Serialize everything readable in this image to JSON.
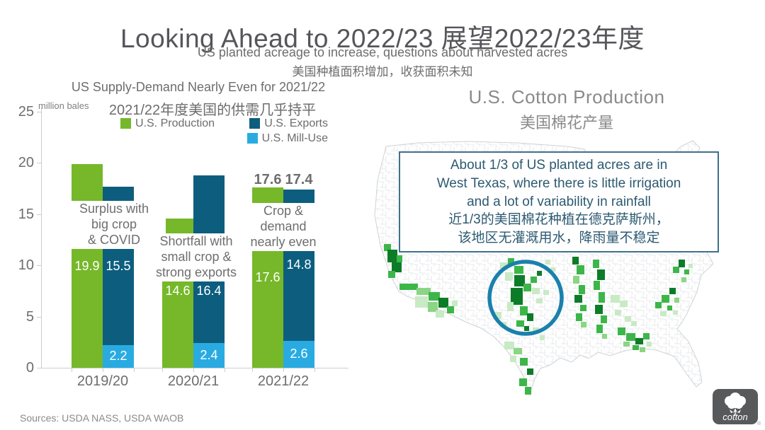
{
  "slide": {
    "title": "Looking Ahead to 2022/23 展望2022/23年度",
    "subtitle_en": "US planted acreage to increase, questions about harvested acres",
    "subtitle_zh": "美国种植面积增加，收获面积未知",
    "sources": "Sources: USDA NASS, USDA WAOB",
    "logo_text": "cotton",
    "logo_registered_mark": "®"
  },
  "chart": {
    "title_en": "US Supply-Demand Nearly Even for 2021/22",
    "title_zh": "2021/22年度美国的供需几乎持平",
    "axis_label": "million bales"
  },
  "chart_data": {
    "type": "bar",
    "title": "US Supply-Demand Nearly Even for 2021/22",
    "ylabel": "million bales",
    "ylim": [
      0,
      25
    ],
    "yticks": [
      0,
      5,
      10,
      15,
      20,
      25
    ],
    "categories": [
      "2019/20",
      "2020/21",
      "2021/22"
    ],
    "structure": "per category: one production bar beside one stacked demand bar (mill-use bottom, exports top)",
    "series": [
      {
        "name": "U.S. Production",
        "color": "#76b82a",
        "values": [
          19.9,
          14.6,
          17.6
        ]
      },
      {
        "name": "U.S. Exports",
        "color": "#0d5e7e",
        "values": [
          15.5,
          16.4,
          14.8
        ]
      },
      {
        "name": "U.S. Mill-Use",
        "color": "#29abe2",
        "values": [
          2.2,
          2.4,
          2.6
        ]
      }
    ],
    "annotations": [
      [
        "Surplus with",
        "big crop",
        "& COVID"
      ],
      [
        "Shortfall with",
        "small crop &",
        "strong exports"
      ],
      [
        "Crop &",
        "demand",
        "nearly even"
      ]
    ],
    "totals": [
      null,
      null,
      {
        "production": "17.6",
        "demand": "17.4"
      }
    ],
    "legend_position": "top"
  },
  "map": {
    "title_en": "U.S. Cotton Production",
    "title_zh": "美国棉花产量",
    "callout_en_lines": [
      "About 1/3 of US planted acres are in",
      "West Texas, where there is little irrigation",
      "and a lot of variability in rainfall"
    ],
    "callout_zh_lines": [
      "近1/3的美国棉花种植在德克萨斯州，",
      "该地区无灌溉用水，降雨量不稳定"
    ],
    "highlight": "West Texas circled",
    "regions": [
      "California",
      "Arizona",
      "West Texas",
      "South Texas",
      "Oklahoma",
      "Mississippi Delta",
      "Southeast",
      "Carolinas"
    ],
    "shade_colors": {
      "light": "#c8eac4",
      "medium_light": "#8bd584",
      "medium": "#3cb649",
      "dark": "#0c7c28"
    },
    "circle_color": "#1a81ac"
  }
}
